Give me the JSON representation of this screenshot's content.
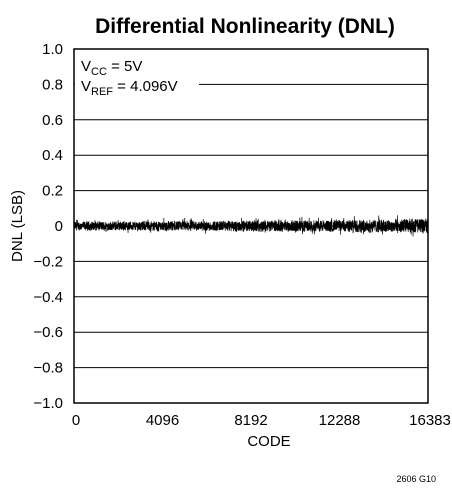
{
  "chart_data": {
    "type": "line",
    "title": "Differential Nonlinearity (DNL)",
    "xlabel": "CODE",
    "ylabel": "DNL (LSB)",
    "xlim": [
      0,
      16383
    ],
    "ylim": [
      -1.0,
      1.0
    ],
    "x_ticks": [
      0,
      4096,
      8192,
      12288,
      16383
    ],
    "x_tick_labels": [
      "0",
      "4096",
      "8192",
      "12288",
      "16383"
    ],
    "y_ticks": [
      1.0,
      0.8,
      0.6,
      0.4,
      0.2,
      0,
      -0.2,
      -0.4,
      -0.6,
      -0.8,
      -1.0
    ],
    "y_tick_labels": [
      "1.0",
      "0.8",
      "0.6",
      "0.4",
      "0.2",
      "0",
      "−0.2",
      "−0.4",
      "−0.6",
      "−0.8",
      "−1.0"
    ],
    "grid": "horizontal",
    "series": [
      {
        "x_range": [
          0,
          16383
        ],
        "band_amplitude": [
          [
            0,
            0.04
          ],
          [
            2048,
            0.04
          ],
          [
            4096,
            0.045
          ],
          [
            6144,
            0.045
          ],
          [
            8192,
            0.05
          ],
          [
            10240,
            0.05
          ],
          [
            12288,
            0.055
          ],
          [
            14336,
            0.06
          ],
          [
            16383,
            0.07
          ]
        ]
      }
    ],
    "annotations": [
      {
        "base": "V",
        "sub": "CC",
        "rest": " = 5V"
      },
      {
        "base": "V",
        "sub": "REF",
        "rest": " = 4.096V"
      }
    ],
    "footnote": "2606 G10"
  }
}
